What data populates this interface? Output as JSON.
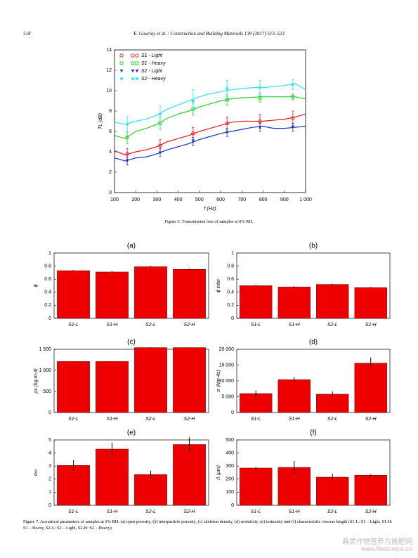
{
  "header": {
    "page": "518",
    "journal": "E. Gourlay et al. / Construction and Building Materials 139 (2017) 513–523"
  },
  "figure6_caption": "Figure 6. Transmission loss of samples at 0% RH.",
  "figure7_caption": "Figure 7. Acoustical parameters of samples at 0% RH: (a) open porosity, (b) interparticle porosity, (c) skeleton density, (d) resistivity, (e) tortuosity and (f) characteristic viscous length (S1-L: S1 – Light, S1-H: S1 – Heavy, S2-L: S2 – Light, S2-H: S2 – Heavy).",
  "watermark": {
    "cn": "蔴类作物营养与施肥网",
    "url": "www.fibercrops.cn"
  },
  "chart_data": [
    {
      "type": "line",
      "xlabel": "f (Hz)",
      "ylabel": "TL (dB)",
      "xlim": [
        100,
        1000
      ],
      "xticks": [
        100,
        200,
        300,
        400,
        500,
        600,
        700,
        800,
        900,
        {
          "value": 1000,
          "label": "1 000"
        }
      ],
      "ylim": [
        0,
        14
      ],
      "yticks": [
        0,
        2,
        4,
        6,
        8,
        10,
        12,
        14
      ],
      "legend": "upper left",
      "x": [
        100,
        150,
        200,
        250,
        300,
        350,
        400,
        450,
        500,
        550,
        600,
        650,
        700,
        750,
        800,
        850,
        900,
        950,
        1000
      ],
      "marker_x": [
        160,
        315,
        470,
        630,
        785,
        940
      ],
      "series": [
        {
          "name": "S1 - Light",
          "color": "#e8141c",
          "marker": "circle",
          "values": [
            4.1,
            3.7,
            4.0,
            4.2,
            4.5,
            5.0,
            5.3,
            5.6,
            6.0,
            6.3,
            6.6,
            6.9,
            7.0,
            7.0,
            7.0,
            7.1,
            7.2,
            7.4,
            7.7
          ],
          "markers": [
            3.8,
            4.6,
            5.8,
            6.8,
            7.0,
            7.3
          ],
          "errors": [
            0.5,
            0.6,
            0.6,
            0.6,
            0.7,
            0.7
          ]
        },
        {
          "name": "S1 - Heavy",
          "color": "#22d022",
          "marker": "square",
          "values": [
            5.6,
            5.3,
            6.0,
            6.3,
            6.7,
            7.3,
            7.7,
            8.0,
            8.4,
            8.7,
            9.0,
            9.2,
            9.3,
            9.35,
            9.4,
            9.4,
            9.4,
            9.4,
            9.2
          ],
          "markers": [
            5.4,
            6.8,
            8.2,
            9.1,
            9.3,
            9.4
          ],
          "errors": [
            0.6,
            0.6,
            0.6,
            0.5,
            0.4,
            0.3
          ]
        },
        {
          "name": "S2 - Light",
          "color": "#1630c8",
          "marker": "triangle",
          "values": [
            3.4,
            3.1,
            3.4,
            3.5,
            3.8,
            4.2,
            4.5,
            4.8,
            5.2,
            5.5,
            5.8,
            6.0,
            6.2,
            6.4,
            6.5,
            6.3,
            6.3,
            6.4,
            6.5
          ],
          "markers": [
            3.1,
            3.9,
            5.0,
            5.9,
            6.4,
            6.4
          ],
          "errors": [
            0.4,
            0.4,
            0.4,
            0.4,
            0.4,
            0.4
          ]
        },
        {
          "name": "S2 - Heavy",
          "color": "#2ee0f0",
          "marker": "star",
          "values": [
            6.9,
            6.7,
            7.0,
            7.2,
            7.6,
            8.2,
            8.6,
            9.0,
            9.4,
            9.7,
            9.9,
            10.1,
            10.2,
            10.3,
            10.3,
            10.4,
            10.5,
            10.7,
            10.1
          ],
          "markers": [
            6.7,
            7.7,
            9.0,
            10.2,
            10.3,
            10.6
          ],
          "errors": [
            0.8,
            0.8,
            1.1,
            0.8,
            0.7,
            0.5
          ]
        }
      ]
    },
    {
      "type": "bar",
      "title": "(a)",
      "ylabel": "ϕ",
      "color": "#ee0000",
      "categories": [
        "S1-L",
        "S1-H",
        "S2-L",
        "S2-H"
      ],
      "values": [
        0.73,
        0.71,
        0.79,
        0.75
      ],
      "errors": [
        0.01,
        0.01,
        0.01,
        0.01
      ],
      "ylim": [
        0,
        1
      ],
      "yticks": [
        0,
        0.2,
        0.4,
        0.6,
        0.8,
        1
      ]
    },
    {
      "type": "bar",
      "title": "(b)",
      "ylabel": "ϕ inter",
      "color": "#ee0000",
      "categories": [
        "S1-L",
        "S1-H",
        "S2-L",
        "S2-H"
      ],
      "values": [
        0.5,
        0.48,
        0.52,
        0.47
      ],
      "errors": [
        0.01,
        0.01,
        0.01,
        0.01
      ],
      "ylim": [
        0,
        1
      ],
      "yticks": [
        0,
        0.2,
        0.4,
        0.6,
        0.8,
        1
      ]
    },
    {
      "type": "bar",
      "title": "(c)",
      "ylabel": "ρs (kg.m-3)",
      "color": "#ee0000",
      "categories": [
        "S1-L",
        "S1-H",
        "S2-L",
        "S2-H"
      ],
      "values": [
        1210,
        1210,
        1540,
        1540
      ],
      "errors": [
        5,
        5,
        5,
        5
      ],
      "ylim": [
        0,
        1500
      ],
      "yticks": [
        0,
        500,
        {
          "value": 1000,
          "label": "1 000"
        },
        {
          "value": 1500,
          "label": "1 500"
        }
      ]
    },
    {
      "type": "bar",
      "title": "(d)",
      "ylabel": "σ (Nm-4s)",
      "color": "#ee0000",
      "categories": [
        "S1-L",
        "S1-H",
        "S2-L",
        "S2-H"
      ],
      "values": [
        6000,
        10400,
        5800,
        15600
      ],
      "errors": [
        900,
        800,
        900,
        1800
      ],
      "ylim": [
        0,
        20000
      ],
      "yticks": [
        0,
        {
          "value": 5000,
          "label": "5 000"
        },
        {
          "value": 10000,
          "label": "10 000"
        },
        {
          "value": 15000,
          "label": "15 000"
        },
        {
          "value": 20000,
          "label": "20 000"
        }
      ]
    },
    {
      "type": "bar",
      "title": "(e)",
      "ylabel": "α∞",
      "color": "#ee0000",
      "categories": [
        "S1-L",
        "S1-H",
        "S2-L",
        "S2-H"
      ],
      "values": [
        3.05,
        4.3,
        2.35,
        4.65
      ],
      "errors": [
        0.4,
        0.5,
        0.3,
        0.55
      ],
      "ylim": [
        0,
        5
      ],
      "yticks": [
        0,
        1,
        2,
        3,
        4,
        5
      ]
    },
    {
      "type": "bar",
      "title": "(f)",
      "ylabel": "Λ (μm)",
      "color": "#ee0000",
      "categories": [
        "S1-L",
        "S1-H",
        "S2-L",
        "S2-H"
      ],
      "values": [
        285,
        290,
        215,
        230
      ],
      "errors": [
        10,
        50,
        25,
        10
      ],
      "ylim": [
        0,
        500
      ],
      "yticks": [
        0,
        100,
        200,
        300,
        400,
        500
      ]
    }
  ]
}
